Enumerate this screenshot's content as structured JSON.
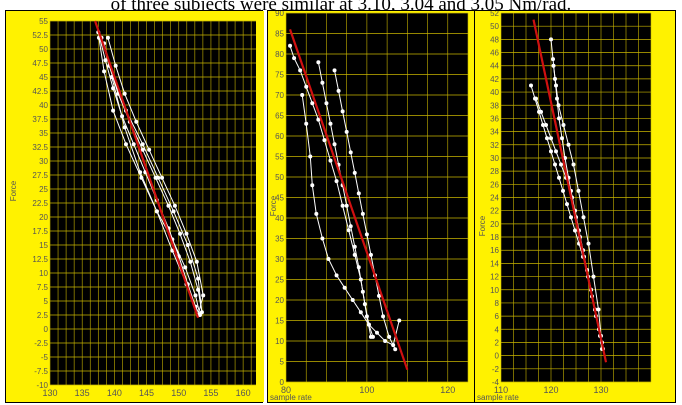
{
  "caption": "of three subjects were similar at 3.10, 3.04 and 3.05 Nm/rad.",
  "chart_data": [
    {
      "type": "scatter",
      "ylabel": "Force",
      "xlabel": "",
      "xlim": [
        130,
        162
      ],
      "ylim": [
        -10,
        55
      ],
      "xticks": [
        130,
        135,
        140,
        145,
        150,
        155,
        160
      ],
      "yticks": [
        -10,
        -7.5,
        -5,
        -2.5,
        0,
        2.5,
        5,
        7.5,
        10,
        12.5,
        15,
        17.5,
        20,
        22.5,
        25,
        27.5,
        30,
        32.5,
        35,
        37.5,
        40,
        42.5,
        45,
        47.5,
        50,
        52.5,
        55
      ],
      "grid": true,
      "series": [
        {
          "x": [
            137.5,
            138.6,
            139.8,
            141.2,
            143.0,
            144.8,
            146.6,
            148.4,
            150.0,
            151.4,
            152.6,
            153.3,
            152.6,
            151.0,
            149.0,
            146.6,
            144.2,
            141.8,
            139.8,
            138.4,
            137.6
          ],
          "y": [
            53,
            48,
            43,
            38,
            33,
            28,
            23,
            18,
            13,
            8,
            4,
            2.5,
            6,
            11,
            16,
            21,
            27,
            33,
            39,
            46,
            52
          ]
        },
        {
          "x": [
            138.0,
            139.2,
            140.6,
            142.4,
            144.4,
            146.4,
            148.4,
            150.2,
            151.8,
            153.0,
            153.6,
            153.0,
            151.4,
            149.2,
            146.8,
            144.4,
            141.8,
            139.8,
            138.4
          ],
          "y": [
            52,
            47,
            42,
            37,
            32,
            27,
            22,
            17,
            12,
            7,
            3,
            9,
            15,
            21,
            27,
            33,
            39,
            45,
            51
          ]
        },
        {
          "x": [
            139.0,
            140.2,
            141.6,
            143.4,
            145.4,
            147.4,
            149.4,
            151.2,
            152.8,
            153.8,
            153.0,
            151.2,
            149.0,
            146.6,
            144.0,
            141.6,
            139.6
          ],
          "y": [
            52,
            47,
            42,
            37,
            32,
            27,
            22,
            17,
            12,
            6,
            2.5,
            8,
            14,
            21,
            28,
            36,
            45
          ]
        }
      ],
      "fit_line": {
        "x": [
          137.0,
          153.0
        ],
        "y": [
          55,
          2
        ]
      }
    },
    {
      "type": "scatter",
      "ylabel": "Force",
      "xlabel": "sample rate",
      "xlim": [
        80,
        125
      ],
      "ylim": [
        0,
        90
      ],
      "xticks": [
        80,
        100,
        120
      ],
      "yticks": [
        0,
        5,
        10,
        15,
        20,
        25,
        30,
        35,
        40,
        45,
        50,
        55,
        60,
        65,
        70,
        75,
        80,
        85,
        90
      ],
      "grid": true,
      "series": [
        {
          "x": [
            81.0,
            82.0,
            83.5,
            85.0,
            86.5,
            88.0,
            89.5,
            91.0,
            92.5,
            94.0,
            95.5,
            97.0,
            98.5,
            99.5,
            100.5,
            101.5
          ],
          "y": [
            82,
            79,
            76,
            72,
            68,
            64,
            59,
            54,
            49,
            43,
            37,
            31,
            25,
            19,
            14,
            11
          ]
        },
        {
          "x": [
            88.0,
            89.0,
            90.0,
            91.0,
            92.0,
            93.0,
            94.0,
            95.0,
            96.0,
            97.0,
            98.0,
            99.0,
            100.0,
            101.0
          ],
          "y": [
            78,
            73,
            68,
            63,
            58,
            53,
            48,
            43,
            38,
            33,
            28,
            22,
            16,
            11
          ]
        },
        {
          "x": [
            84.0,
            85.0,
            86.0,
            86.5,
            87.5,
            89.0,
            90.5,
            92.5,
            94.5,
            96.5,
            98.5,
            100.5,
            102.5,
            104.5,
            106.5,
            108.0
          ],
          "y": [
            70,
            63,
            55,
            48,
            41,
            35,
            30,
            26,
            23,
            20,
            17,
            14,
            12,
            10,
            9,
            15
          ]
        },
        {
          "x": [
            92.0,
            93.0,
            94.0,
            95.0,
            96.0,
            97.0,
            98.0,
            99.0,
            100.0,
            101.0,
            102.0,
            103.0,
            104.0,
            105.5,
            107.0
          ],
          "y": [
            76,
            71,
            66,
            61,
            56,
            51,
            46,
            41,
            36,
            31,
            26,
            21,
            16,
            11,
            8
          ]
        }
      ],
      "fit_line": {
        "x": [
          81.0,
          110.0
        ],
        "y": [
          86,
          3
        ]
      }
    },
    {
      "type": "scatter",
      "ylabel": "Force",
      "xlabel": "sample rate",
      "xlim": [
        110,
        140
      ],
      "ylim": [
        -4,
        52
      ],
      "xticks": [
        110,
        120,
        130
      ],
      "yticks": [
        -4,
        -2,
        0,
        2,
        4,
        6,
        8,
        10,
        12,
        14,
        16,
        18,
        20,
        22,
        24,
        26,
        28,
        30,
        32,
        34,
        36,
        38,
        40,
        42,
        44,
        46,
        48,
        50,
        52
      ],
      "grid": true,
      "series": [
        {
          "x": [
            116.0,
            116.8,
            117.6,
            118.4,
            119.2,
            120.0,
            120.8,
            121.6,
            122.4,
            123.2,
            124.0,
            124.8,
            125.6,
            126.4,
            127.2,
            128.0,
            128.8,
            129.6,
            130.2
          ],
          "y": [
            41,
            39,
            37,
            35,
            33,
            31,
            29,
            27,
            25,
            23,
            21,
            19,
            17,
            15,
            13,
            10,
            7,
            4,
            1
          ]
        },
        {
          "x": [
            120.0,
            120.4,
            120.8,
            121.2,
            121.6,
            122.2,
            122.8,
            123.5,
            124.2,
            125.0,
            125.8,
            126.6,
            127.4,
            128.2,
            129.0,
            129.8,
            130.4
          ],
          "y": [
            48,
            45,
            42,
            39,
            36,
            33,
            30,
            27,
            24,
            21,
            18,
            15,
            12,
            9,
            6,
            3,
            1
          ]
        },
        {
          "x": [
            117.0,
            118.0,
            119.0,
            120.0,
            121.0,
            122.0,
            123.0,
            124.0,
            124.8,
            125.6,
            126.4,
            127.2,
            128.0,
            128.8,
            129.6,
            130.2
          ],
          "y": [
            39,
            37,
            35,
            33,
            31,
            29,
            27,
            25,
            22,
            19,
            16,
            13,
            10,
            7,
            4,
            2
          ]
        },
        {
          "x": [
            120.5,
            121.0,
            121.5,
            122.5,
            123.5,
            124.5,
            125.5,
            126.5,
            127.5,
            128.5,
            129.5,
            130.0
          ],
          "y": [
            44,
            41,
            38,
            35,
            32,
            29,
            25,
            21,
            17,
            12,
            7,
            3
          ]
        }
      ],
      "fit_line": {
        "x": [
          116.5,
          131.0
        ],
        "y": [
          51,
          -1
        ]
      }
    }
  ]
}
